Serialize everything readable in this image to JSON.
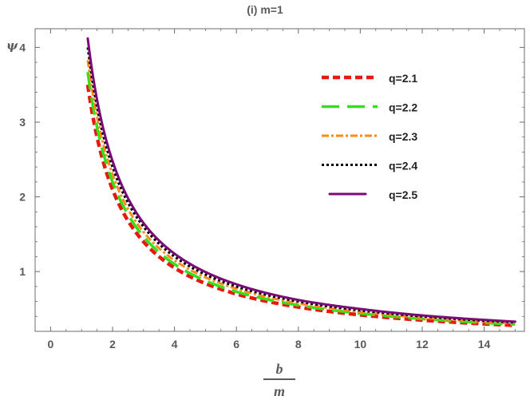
{
  "chart_data": {
    "type": "line",
    "title": "(i)  m=1",
    "xlabel_numerator": "b",
    "xlabel_denominator": "m",
    "ylabel": "ψ",
    "xlim": [
      -0.5,
      15.3
    ],
    "ylim": [
      0.2,
      4.25
    ],
    "xticks": [
      0,
      2,
      4,
      6,
      8,
      10,
      12,
      14
    ],
    "yticks": [
      1,
      2,
      3,
      4
    ],
    "grid": false,
    "legend_position": "top-right",
    "series": [
      {
        "name": "q=2.1",
        "color": "#e8180f",
        "style": "dashed-thick",
        "x": [
          1.2,
          1.5,
          2,
          3,
          4,
          6,
          8,
          10,
          12,
          15
        ],
        "y": [
          3.5,
          2.8,
          2.1,
          1.4,
          1.05,
          0.7,
          0.525,
          0.42,
          0.35,
          0.28
        ]
      },
      {
        "name": "q=2.2",
        "color": "#33e01a",
        "style": "long-dash",
        "x": [
          1.2,
          1.5,
          2,
          3,
          4,
          6,
          8,
          10,
          12,
          15
        ],
        "y": [
          3.67,
          2.93,
          2.2,
          1.47,
          1.1,
          0.73,
          0.55,
          0.44,
          0.367,
          0.293
        ]
      },
      {
        "name": "q=2.3",
        "color": "#ff8a1c",
        "style": "dash-dot",
        "x": [
          1.2,
          1.5,
          2,
          3,
          4,
          6,
          8,
          10,
          12,
          15
        ],
        "y": [
          3.83,
          3.07,
          2.3,
          1.53,
          1.15,
          0.77,
          0.575,
          0.46,
          0.383,
          0.307
        ]
      },
      {
        "name": "q=2.4",
        "color": "#000000",
        "style": "dotted",
        "x": [
          1.2,
          1.5,
          2,
          3,
          4,
          6,
          8,
          10,
          12,
          15
        ],
        "y": [
          4.0,
          3.2,
          2.4,
          1.6,
          1.2,
          0.8,
          0.6,
          0.48,
          0.4,
          0.32
        ]
      },
      {
        "name": "q=2.5",
        "color": "#7a0a78",
        "style": "solid",
        "x": [
          1.2,
          1.5,
          2,
          3,
          4,
          6,
          8,
          10,
          12,
          15
        ],
        "y": [
          4.12,
          3.3,
          2.48,
          1.65,
          1.24,
          0.83,
          0.62,
          0.5,
          0.413,
          0.33
        ]
      }
    ]
  }
}
